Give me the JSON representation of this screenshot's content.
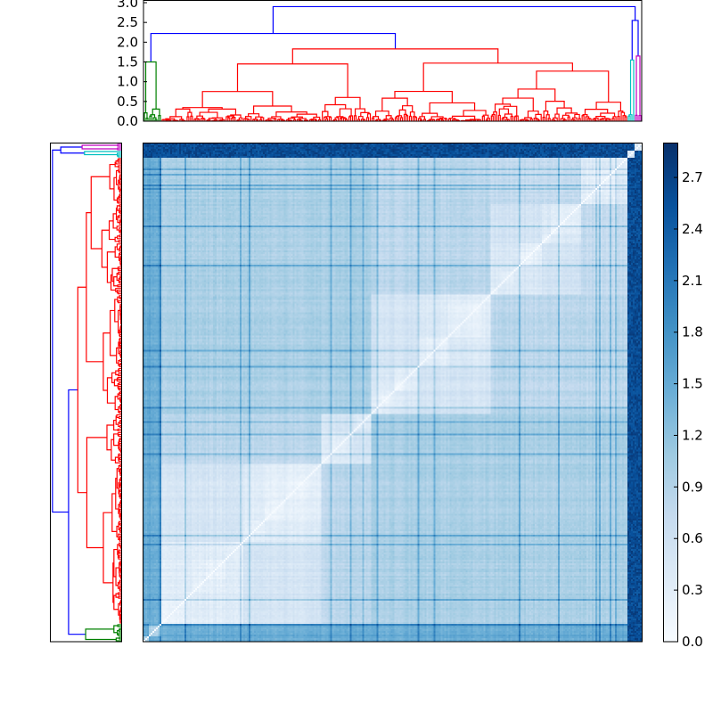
{
  "chart_data": {
    "type": "heatmap",
    "colormap": "Blues",
    "value_range": [
      0.0,
      2.9
    ],
    "colorbar": {
      "ticks": [
        0.0,
        0.3,
        0.6,
        0.9,
        1.2,
        1.5,
        1.8,
        2.1,
        2.4,
        2.7
      ],
      "tick_labels": [
        "0.0",
        "0.3",
        "0.6",
        "0.9",
        "1.2",
        "1.5",
        "1.8",
        "2.1",
        "2.4",
        "2.7"
      ]
    },
    "top_dendrogram": {
      "ylim": [
        0.0,
        3.0
      ],
      "ticks": [
        0.0,
        0.5,
        1.0,
        1.5,
        2.0,
        2.5,
        3.0
      ],
      "tick_labels": [
        "0.0",
        "0.5",
        "1.0",
        "1.5",
        "2.0",
        "2.5",
        "3.0"
      ],
      "major_merges": [
        {
          "name": "root",
          "height": 2.9,
          "color": "#0000ff"
        },
        {
          "name": "right group",
          "height": 2.55,
          "color": "#0000ff"
        },
        {
          "name": "left group",
          "height": 2.22,
          "color": "#0000ff"
        },
        {
          "name": "red cluster",
          "height": 1.83,
          "color": "#ff0000"
        },
        {
          "name": "magenta cluster",
          "height": 1.65,
          "color": "#bf00bf"
        },
        {
          "name": "cyan cluster",
          "height": 1.55,
          "color": "#00bfbf"
        },
        {
          "name": "green cluster",
          "height": 1.5,
          "color": "#008000"
        }
      ]
    },
    "left_dendrogram": {
      "orientation": "left",
      "mirrors": "top_dendrogram"
    },
    "clusters": [
      {
        "color": "#008000",
        "leaves": 10
      },
      {
        "color": "#ff0000",
        "leaves": 262
      },
      {
        "color": "#00bfbf",
        "leaves": 4
      },
      {
        "color": "#bf00bf",
        "leaves": 4
      }
    ],
    "link_color_above_threshold": "#0000ff"
  }
}
